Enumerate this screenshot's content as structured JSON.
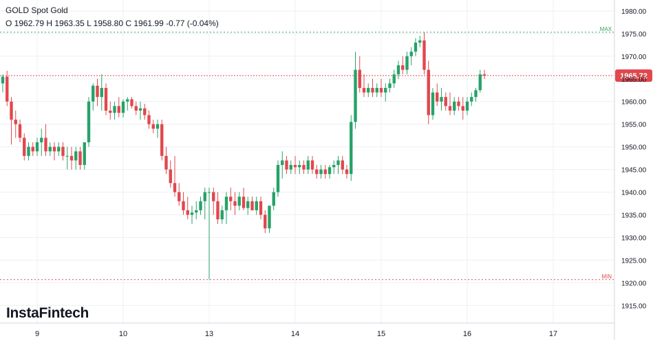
{
  "header": {
    "symbol": "GOLD Spot Gold",
    "ohlc": "O 1962.79 H 1963.35 L 1958.80 C 1961.99  -0.77 (-0.04%)"
  },
  "logo_text": "InstaFintech",
  "colors": {
    "up": "#26a269",
    "down": "#e0484e",
    "grid": "#eceff3",
    "max_line": "#33a35a",
    "min_line": "#e0484e",
    "price_line": "#e0484e",
    "price_badge": "#e0484e"
  },
  "chart_data": {
    "type": "candlestick",
    "y_ticks": [
      "1980.00",
      "1975.00",
      "1970.00",
      "1965.00",
      "1960.00",
      "1955.00",
      "1950.00",
      "1945.00",
      "1940.00",
      "1935.00",
      "1930.00",
      "1925.00",
      "1920.00",
      "1915.00"
    ],
    "ylim": [
      1910.5,
      1981.5
    ],
    "x_ticks": [
      {
        "label": "9",
        "index": 8
      },
      {
        "label": "10",
        "index": 28
      },
      {
        "label": "13",
        "index": 48
      },
      {
        "label": "14",
        "index": 68
      },
      {
        "label": "15",
        "index": 88
      },
      {
        "label": "16",
        "index": 108
      },
      {
        "label": "17",
        "index": 128
      }
    ],
    "x_count": 141,
    "current_price": {
      "label": "1965.72",
      "value": 1965.72
    },
    "max_line": {
      "label": "MAX",
      "value": 1975.3
    },
    "min_line": {
      "label": "MIN",
      "value": 1920.7
    },
    "candles": [
      [
        1964,
        1966,
        1962,
        1965.5
      ],
      [
        1965.5,
        1966.8,
        1959,
        1960
      ],
      [
        1960,
        1961,
        1950.5,
        1956
      ],
      [
        1956,
        1958,
        1952,
        1955
      ],
      [
        1955,
        1956,
        1951,
        1952
      ],
      [
        1952,
        1953,
        1947,
        1948
      ],
      [
        1948,
        1951,
        1947,
        1950
      ],
      [
        1950,
        1951,
        1948,
        1949
      ],
      [
        1949,
        1952,
        1948,
        1951
      ],
      [
        1951,
        1954,
        1948,
        1952
      ],
      [
        1952,
        1955,
        1948,
        1949
      ],
      [
        1949,
        1951,
        1948,
        1950
      ],
      [
        1950,
        1951,
        1947,
        1949
      ],
      [
        1949,
        1951,
        1948,
        1950
      ],
      [
        1950,
        1951,
        1947,
        1948
      ],
      [
        1948,
        1950,
        1945,
        1948
      ],
      [
        1948,
        1950,
        1945,
        1947
      ],
      [
        1947,
        1950,
        1945,
        1949
      ],
      [
        1949,
        1950,
        1945,
        1946
      ],
      [
        1946,
        1951,
        1945,
        1951
      ],
      [
        1951,
        1961,
        1950,
        1960
      ],
      [
        1960,
        1964,
        1958,
        1963.5
      ],
      [
        1963.5,
        1965,
        1959,
        1961
      ],
      [
        1961,
        1966,
        1958,
        1963
      ],
      [
        1963,
        1964,
        1957,
        1958
      ],
      [
        1958,
        1960,
        1956,
        1957.5
      ],
      [
        1957.5,
        1960,
        1956,
        1959
      ],
      [
        1959,
        1961,
        1956.5,
        1957.5
      ],
      [
        1957.5,
        1960.5,
        1956.5,
        1960
      ],
      [
        1960,
        1961,
        1958,
        1960.5
      ],
      [
        1960.5,
        1961,
        1958.5,
        1959
      ],
      [
        1959,
        1960,
        1957,
        1958
      ],
      [
        1958,
        1960,
        1956,
        1958.5
      ],
      [
        1958.5,
        1959.5,
        1956,
        1957
      ],
      [
        1957,
        1958,
        1954,
        1955
      ],
      [
        1955,
        1956,
        1953,
        1954
      ],
      [
        1954,
        1956,
        1952,
        1955
      ],
      [
        1955,
        1956,
        1947,
        1948
      ],
      [
        1948,
        1950,
        1944,
        1945
      ],
      [
        1945,
        1947,
        1941,
        1942
      ],
      [
        1942,
        1948,
        1939,
        1940
      ],
      [
        1940,
        1942,
        1937,
        1938
      ],
      [
        1938,
        1940,
        1935,
        1936
      ],
      [
        1936,
        1939,
        1934,
        1935
      ],
      [
        1935,
        1937,
        1933,
        1935.5
      ],
      [
        1935.5,
        1938,
        1934,
        1936
      ],
      [
        1936,
        1939,
        1935,
        1938
      ],
      [
        1938,
        1941,
        1934,
        1940
      ],
      [
        1940,
        1941,
        1920.7,
        1940
      ],
      [
        1940,
        1941,
        1935,
        1938
      ],
      [
        1938,
        1940,
        1933,
        1934
      ],
      [
        1934,
        1937,
        1933,
        1936
      ],
      [
        1936,
        1940,
        1933,
        1939
      ],
      [
        1939,
        1941,
        1936,
        1938
      ],
      [
        1938,
        1940,
        1935,
        1937
      ],
      [
        1937,
        1940,
        1936,
        1939
      ],
      [
        1939,
        1941,
        1936,
        1936.5
      ],
      [
        1936.5,
        1939,
        1935,
        1938
      ],
      [
        1938,
        1939,
        1936,
        1936
      ],
      [
        1936,
        1939,
        1935,
        1938
      ],
      [
        1938,
        1939,
        1934,
        1935
      ],
      [
        1935,
        1936,
        1931,
        1932
      ],
      [
        1932,
        1937,
        1931,
        1937
      ],
      [
        1937,
        1941,
        1936,
        1940
      ],
      [
        1940,
        1947,
        1939,
        1946
      ],
      [
        1946,
        1949,
        1943,
        1947
      ],
      [
        1947,
        1948,
        1944,
        1945
      ],
      [
        1945,
        1947,
        1944,
        1946
      ],
      [
        1946,
        1948,
        1944,
        1945.5
      ],
      [
        1945.5,
        1947,
        1944,
        1946
      ],
      [
        1946,
        1947,
        1944,
        1945
      ],
      [
        1945,
        1948,
        1944,
        1947
      ],
      [
        1947,
        1948,
        1944,
        1945
      ],
      [
        1945,
        1946,
        1943,
        1944
      ],
      [
        1944,
        1946,
        1943,
        1945
      ],
      [
        1945,
        1946,
        1943,
        1944
      ],
      [
        1944,
        1946,
        1943,
        1945.5
      ],
      [
        1945.5,
        1947,
        1944,
        1946
      ],
      [
        1946,
        1948,
        1944,
        1947
      ],
      [
        1947,
        1948,
        1944,
        1945
      ],
      [
        1945,
        1946,
        1943,
        1944
      ],
      [
        1944,
        1957,
        1942.5,
        1955.5
      ],
      [
        1955.5,
        1971,
        1954,
        1967
      ],
      [
        1967,
        1970,
        1962,
        1963
      ],
      [
        1963,
        1966,
        1961,
        1962
      ],
      [
        1962,
        1964,
        1961,
        1963
      ],
      [
        1963,
        1965,
        1961,
        1962
      ],
      [
        1962,
        1964,
        1961,
        1963
      ],
      [
        1963,
        1965,
        1961,
        1962
      ],
      [
        1962,
        1964,
        1960,
        1963
      ],
      [
        1963,
        1965,
        1962,
        1964
      ],
      [
        1964,
        1967,
        1963,
        1966
      ],
      [
        1966,
        1969,
        1965,
        1968
      ],
      [
        1968,
        1970,
        1966,
        1967
      ],
      [
        1967,
        1971,
        1966,
        1970
      ],
      [
        1970,
        1972,
        1968,
        1971
      ],
      [
        1971,
        1974,
        1970,
        1973
      ],
      [
        1973,
        1974.5,
        1972,
        1973.5
      ],
      [
        1973.5,
        1975.3,
        1966,
        1967
      ],
      [
        1967,
        1969,
        1955,
        1957
      ],
      [
        1957,
        1963,
        1956,
        1962
      ],
      [
        1962,
        1964,
        1959,
        1960
      ],
      [
        1960,
        1963,
        1958,
        1961
      ],
      [
        1961,
        1962,
        1958,
        1959
      ],
      [
        1959,
        1962,
        1957,
        1958
      ],
      [
        1958,
        1961,
        1957,
        1960
      ],
      [
        1960,
        1961,
        1958,
        1959
      ],
      [
        1959,
        1961,
        1956,
        1958
      ],
      [
        1958,
        1961,
        1957,
        1960
      ],
      [
        1960,
        1962,
        1959,
        1961
      ],
      [
        1961,
        1963,
        1960,
        1962.5
      ],
      [
        1962.5,
        1967,
        1962,
        1966
      ],
      [
        1966,
        1967,
        1965,
        1965.72
      ]
    ]
  }
}
